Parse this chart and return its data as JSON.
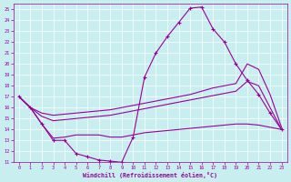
{
  "bg_color": "#c8eef0",
  "line_color": "#990099",
  "xlim": [
    -0.5,
    23.5
  ],
  "ylim": [
    11,
    25.5
  ],
  "xticks": [
    0,
    1,
    2,
    3,
    4,
    5,
    6,
    7,
    8,
    9,
    10,
    11,
    12,
    13,
    14,
    15,
    16,
    17,
    18,
    19,
    20,
    21,
    22,
    23
  ],
  "yticks": [
    11,
    12,
    13,
    14,
    15,
    16,
    17,
    18,
    19,
    20,
    21,
    22,
    23,
    24,
    25
  ],
  "xlabel": "Windchill (Refroidissement éolien,°C)",
  "main_x": [
    0,
    1,
    2,
    3,
    4,
    5,
    6,
    7,
    8,
    9,
    10,
    11,
    12,
    13,
    14,
    15,
    16,
    17,
    18,
    19,
    20,
    21,
    22,
    23
  ],
  "main_y": [
    17,
    16,
    14.5,
    13,
    13,
    11.8,
    11.5,
    11.2,
    11.1,
    11,
    13.3,
    18.8,
    21.0,
    22.5,
    23.8,
    25.1,
    25.2,
    23.2,
    22.0,
    20.0,
    18.5,
    17.2,
    15.5,
    14.0
  ],
  "line2_x": [
    0,
    1,
    2,
    3,
    4,
    5,
    6,
    7,
    8,
    9,
    10,
    11,
    12,
    13,
    14,
    15,
    16,
    17,
    18,
    19,
    20,
    21,
    22,
    23
  ],
  "line2_y": [
    17,
    16,
    15.5,
    15.3,
    15.4,
    15.5,
    15.6,
    15.7,
    15.8,
    16.0,
    16.2,
    16.4,
    16.6,
    16.8,
    17.0,
    17.2,
    17.5,
    17.8,
    18.0,
    18.2,
    20.0,
    19.5,
    17.2,
    14.2
  ],
  "line3_x": [
    0,
    1,
    2,
    3,
    4,
    5,
    6,
    7,
    8,
    9,
    10,
    11,
    12,
    13,
    14,
    15,
    16,
    17,
    18,
    19,
    20,
    21,
    22,
    23
  ],
  "line3_y": [
    17,
    16,
    15.2,
    14.8,
    14.9,
    15.0,
    15.1,
    15.2,
    15.3,
    15.5,
    15.7,
    15.9,
    16.1,
    16.3,
    16.5,
    16.7,
    16.9,
    17.1,
    17.3,
    17.5,
    18.4,
    18.0,
    16.0,
    14.0
  ],
  "line4_x": [
    0,
    1,
    2,
    3,
    4,
    5,
    6,
    7,
    8,
    9,
    10,
    11,
    12,
    13,
    14,
    15,
    16,
    17,
    18,
    19,
    20,
    21,
    22,
    23
  ],
  "line4_y": [
    17,
    16,
    14.5,
    13.2,
    13.3,
    13.5,
    13.5,
    13.5,
    13.3,
    13.3,
    13.5,
    13.7,
    13.8,
    13.9,
    14.0,
    14.1,
    14.2,
    14.3,
    14.4,
    14.5,
    14.5,
    14.4,
    14.2,
    14.0
  ]
}
